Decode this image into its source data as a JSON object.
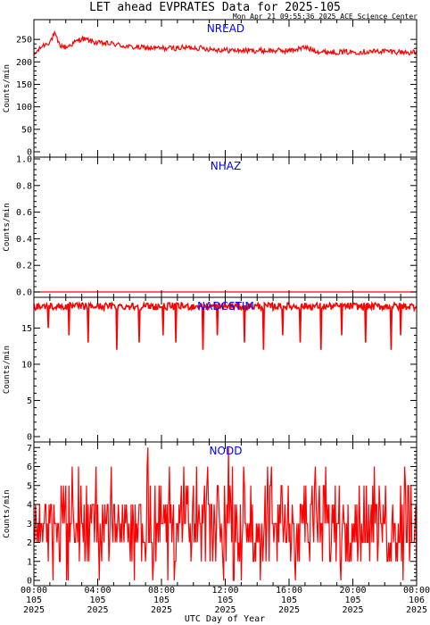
{
  "title": "LET ahead EVPRATES Data for 2025-105",
  "timestamp": "Mon Apr 21 09:55:36 2025 ACE Science Center",
  "x_axis_label": "UTC Day of Year",
  "colors": {
    "data": "#ff0000",
    "panel_name": "#0000ff",
    "axes": "#000000"
  },
  "x_ticks": [
    {
      "time": "00:00",
      "doy": "105",
      "year": "2025",
      "hour": 0
    },
    {
      "time": "04:00",
      "doy": "105",
      "year": "2025",
      "hour": 4
    },
    {
      "time": "08:00",
      "doy": "105",
      "year": "2025",
      "hour": 8
    },
    {
      "time": "12:00",
      "doy": "105",
      "year": "2025",
      "hour": 12
    },
    {
      "time": "16:00",
      "doy": "105",
      "year": "2025",
      "hour": 16
    },
    {
      "time": "20:00",
      "doy": "105",
      "year": "2025",
      "hour": 20
    },
    {
      "time": "00:00",
      "doy": "106",
      "year": "2025",
      "hour": 24
    }
  ],
  "chart_data": [
    {
      "type": "line",
      "name": "NREAD",
      "ylabel": "Counts/min",
      "ylim": [
        0,
        290
      ],
      "yticks": [
        0,
        50,
        100,
        150,
        200,
        250
      ],
      "x_hours": [
        0,
        0.5,
        1.0,
        1.3,
        1.6,
        2.0,
        3.0,
        4.0,
        5.0,
        6.0,
        8.0,
        10.0,
        12.0,
        14.0,
        16.0,
        17.0,
        18.0,
        20.0,
        22.0,
        24.0
      ],
      "values": [
        215,
        235,
        245,
        262,
        238,
        232,
        252,
        242,
        240,
        233,
        230,
        232,
        226,
        225,
        225,
        232,
        222,
        222,
        224,
        220
      ],
      "noise": 6
    },
    {
      "type": "line",
      "name": "NHAZ",
      "ylabel": "Counts/min",
      "ylim": [
        0,
        1
      ],
      "yticks": [
        0.0,
        0.2,
        0.4,
        0.6,
        0.8,
        1.0
      ],
      "x_hours": [
        0,
        24
      ],
      "values": [
        0,
        0
      ],
      "noise": 0
    },
    {
      "type": "line",
      "name": "NADCSTIM",
      "ylabel": "Counts/min",
      "ylim": [
        0,
        19
      ],
      "yticks": [
        0,
        5,
        10,
        15
      ],
      "x_hours": [
        0,
        24
      ],
      "values": [
        18,
        18
      ],
      "noise": 0.5,
      "dips": [
        {
          "hour": 0.9,
          "value": 15
        },
        {
          "hour": 2.2,
          "value": 14
        },
        {
          "hour": 3.4,
          "value": 13
        },
        {
          "hour": 5.2,
          "value": 12
        },
        {
          "hour": 6.6,
          "value": 13
        },
        {
          "hour": 8.1,
          "value": 14
        },
        {
          "hour": 8.9,
          "value": 13
        },
        {
          "hour": 10.6,
          "value": 12
        },
        {
          "hour": 11.5,
          "value": 14
        },
        {
          "hour": 13.2,
          "value": 13
        },
        {
          "hour": 14.4,
          "value": 12
        },
        {
          "hour": 15.6,
          "value": 14
        },
        {
          "hour": 16.7,
          "value": 13
        },
        {
          "hour": 18.0,
          "value": 12
        },
        {
          "hour": 19.3,
          "value": 14
        },
        {
          "hour": 20.8,
          "value": 13
        },
        {
          "hour": 22.4,
          "value": 12
        },
        {
          "hour": 23.0,
          "value": 14
        }
      ]
    },
    {
      "type": "line",
      "name": "NODD",
      "ylabel": "Counts/min",
      "ylim": [
        0,
        7.2
      ],
      "yticks": [
        0,
        1,
        2,
        3,
        4,
        5,
        6,
        7
      ],
      "x_hours": [
        0,
        24
      ],
      "values": [
        3,
        3
      ],
      "discrete_range": [
        0,
        7
      ]
    }
  ]
}
